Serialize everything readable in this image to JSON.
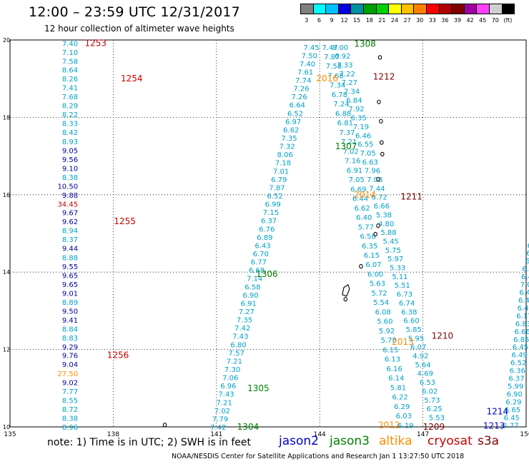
{
  "header": {
    "title": "12:00 – 23:59 UTC 12/31/2017",
    "subtitle": "12 hour collection of altimeter wave heights"
  },
  "colorbar": {
    "colors": [
      "#808080",
      "#00ffff",
      "#00c0ff",
      "#0000e0",
      "#0090a0",
      "#00a000",
      "#00d000",
      "#ffff00",
      "#ffc000",
      "#ff8000",
      "#ff0000",
      "#b00000",
      "#800000",
      "#a000a0",
      "#ff40ff",
      "#d0d0d0",
      "#000000"
    ],
    "labels": [
      "3",
      "6",
      "9",
      "12",
      "15",
      "18",
      "21",
      "24",
      "27",
      "30",
      "33",
      "36",
      "39",
      "42",
      "45",
      "70",
      "(ft)"
    ]
  },
  "map": {
    "lon_ticks": [
      "135",
      "138",
      "141",
      "144",
      "147",
      "150"
    ],
    "lat_ticks": [
      "10",
      "12",
      "14",
      "16",
      "18",
      "20"
    ],
    "colors": {
      "jason2": "#0000c8",
      "jason3": "#008000",
      "altika": "#ff8c00",
      "cryosat": "#c80000",
      "s3a": "#800000",
      "swh_light": "#00a0c8",
      "swh_mid": "#0080d0",
      "swh_dark": "#0000a0"
    },
    "tracks": [
      {
        "sat": "cryosat",
        "pass": "1253",
        "pass_lat": 19.92,
        "lon": 136.83,
        "values": [
          {
            "v": "7.40",
            "lat": 19.92,
            "lon": 136.83
          },
          {
            "v": "7.10",
            "lat": 19.69,
            "lon": 136.83
          },
          {
            "v": "7.58",
            "lat": 19.46,
            "lon": 136.83
          },
          {
            "v": "8.64",
            "lat": 19.23,
            "lon": 136.83
          },
          {
            "v": "8.26",
            "lat": 19.0,
            "lon": 136.83
          },
          {
            "v": "7.41",
            "lat": 18.77,
            "lon": 136.83
          },
          {
            "v": "7.68",
            "lat": 18.54,
            "lon": 136.83
          },
          {
            "v": "8.29",
            "lat": 18.31,
            "lon": 136.83
          },
          {
            "v": "8.22",
            "lat": 18.08,
            "lon": 136.83
          },
          {
            "v": "8.33",
            "lat": 17.85,
            "lon": 136.83
          },
          {
            "v": "8.42",
            "lat": 17.62,
            "lon": 136.83
          },
          {
            "v": "8.93",
            "lat": 17.38,
            "lon": 136.83
          },
          {
            "v": "9.05",
            "lat": 17.15,
            "lon": 136.83
          },
          {
            "v": "9.56",
            "lat": 16.92,
            "lon": 136.83
          },
          {
            "v": "9.10",
            "lat": 16.69,
            "lon": 136.83
          },
          {
            "v": "8.38",
            "lat": 16.46,
            "lon": 136.83
          },
          {
            "v": "10.50",
            "lat": 16.23,
            "lon": 136.83
          },
          {
            "v": "9.88",
            "lat": 16.0,
            "lon": 136.83
          },
          {
            "v": "34.45",
            "lat": 15.77,
            "lon": 136.83
          },
          {
            "v": "9.67",
            "lat": 15.54,
            "lon": 136.83
          },
          {
            "v": "9.62",
            "lat": 15.31,
            "lon": 136.83
          },
          {
            "v": "8.94",
            "lat": 15.08,
            "lon": 136.83
          },
          {
            "v": "8.37",
            "lat": 14.85,
            "lon": 136.83
          },
          {
            "v": "9.44",
            "lat": 14.62,
            "lon": 136.83
          },
          {
            "v": "8.88",
            "lat": 14.38,
            "lon": 136.83
          },
          {
            "v": "9.55",
            "lat": 14.15,
            "lon": 136.83
          },
          {
            "v": "9.65",
            "lat": 13.92,
            "lon": 136.83
          },
          {
            "v": "9.65",
            "lat": 13.69,
            "lon": 136.83
          },
          {
            "v": "9.01",
            "lat": 13.46,
            "lon": 136.83
          },
          {
            "v": "8.89",
            "lat": 13.23,
            "lon": 136.83
          },
          {
            "v": "9.50",
            "lat": 13.0,
            "lon": 136.83
          },
          {
            "v": "9.41",
            "lat": 12.77,
            "lon": 136.83
          },
          {
            "v": "8.84",
            "lat": 12.54,
            "lon": 136.83
          },
          {
            "v": "8.83",
            "lat": 12.31,
            "lon": 136.83
          },
          {
            "v": "9.29",
            "lat": 12.08,
            "lon": 136.83
          },
          {
            "v": "9.76",
            "lat": 11.85,
            "lon": 136.83
          },
          {
            "v": "9.04",
            "lat": 11.62,
            "lon": 136.83
          },
          {
            "v": "27.50",
            "lat": 11.38,
            "lon": 136.83
          },
          {
            "v": "9.02",
            "lat": 11.15,
            "lon": 136.83
          },
          {
            "v": "7.77",
            "lat": 10.92,
            "lon": 136.83
          },
          {
            "v": "8.55",
            "lat": 10.69,
            "lon": 136.83
          },
          {
            "v": "8.72",
            "lat": 10.46,
            "lon": 136.83
          },
          {
            "v": "8.38",
            "lat": 10.23,
            "lon": 136.83
          },
          {
            "v": "8.96",
            "lat": 10.0,
            "lon": 136.83
          }
        ]
      },
      {
        "sat": "cryosat",
        "pass": "1254",
        "lat": 19.0,
        "lon": 138.2
      },
      {
        "sat": "cryosat",
        "pass": "1255",
        "lat": 15.31,
        "lon": 138.0
      },
      {
        "sat": "cryosat",
        "pass": "1256",
        "lat": 11.85,
        "lon": 137.8
      }
    ],
    "swh_track_1304_1306": [
      "7.45",
      "7.50",
      "7.40",
      "7.61",
      "7.74",
      "7.26",
      "7.26",
      "6.64",
      "6.52",
      "6.97",
      "6.62",
      "7.35",
      "7.32",
      "8.06",
      "7.18",
      "7.01",
      "6.79",
      "7.87",
      "6.52",
      "6.99",
      "7.15",
      "6.37",
      "6.76",
      "6.89",
      "6.43",
      "6.70",
      "6.77",
      "6.68",
      "7.14",
      "6.58",
      "6.90",
      "6.91",
      "7.27",
      "7.35",
      "7.42",
      "7.43",
      "6.80",
      "7.57",
      "7.21",
      "7.30",
      "7.06",
      "6.96",
      "7.43",
      "7.21",
      "7.02",
      "7.79",
      "7.42"
    ],
    "swh_track_1307_1308": [
      "7.47",
      "7.87",
      "7.58",
      "7.68",
      "7.34",
      "6.78",
      "7.24",
      "6.88",
      "6.81",
      "7.37",
      "7.21",
      "7.02",
      "7.16",
      "6.91",
      "7.05",
      "6.69",
      "6.44",
      "6.62",
      "6.40",
      "5.77",
      "6.58",
      "6.35",
      "6.15",
      "6.07",
      "6.00",
      "5.63",
      "5.72",
      "5.54",
      "6.08",
      "5.60",
      "5.92",
      "5.78",
      "6.15",
      "6.13",
      "6.16",
      "6.14",
      "5.81",
      "6.22",
      "6.29",
      "6.03",
      "6.19"
    ],
    "swh_track_1208_1212": [
      "8.00",
      "6.92",
      "7.33",
      "7.22",
      "7.27",
      "7.34",
      "6.84",
      "7.92",
      "6.35",
      "7.19",
      "6.46",
      "6.55",
      "7.05",
      "6.63",
      "7.96",
      "7.08",
      "7.44",
      "6.72",
      "6.66",
      "5.38",
      "4.80",
      "5.88",
      "5.45",
      "5.75",
      "5.97",
      "5.33",
      "5.11",
      "5.51",
      "6.73",
      "6.74",
      "6.38",
      "6.60",
      "5.85",
      "5.95",
      "6.07",
      "4.92",
      "5.64",
      "4.69",
      "6.53",
      "6.02",
      "5.73",
      "6.25",
      "5.53"
    ],
    "swh_track_1213_1214": [
      "6.77",
      "6.45",
      "6.65",
      "6.29",
      "6.90",
      "5.99",
      "6.37",
      "6.36",
      "6.52",
      "6.49",
      "6.45",
      "6.85",
      "6.66",
      "6.83",
      "6.17",
      "6.45",
      "6.47",
      "6.46",
      "7.06",
      "6.45",
      "6.48",
      "6.7",
      "6.1",
      "6.0"
    ],
    "pass_labels": [
      {
        "id": "1304",
        "sat": "jason3"
      },
      {
        "id": "1305",
        "sat": "jason3"
      },
      {
        "id": "1306",
        "sat": "jason3"
      },
      {
        "id": "1307",
        "sat": "jason3"
      },
      {
        "id": "1308",
        "sat": "jason3"
      },
      {
        "id": "2016",
        "sat": "altika"
      },
      {
        "id": "2014",
        "sat": "altika"
      },
      {
        "id": "2013",
        "sat": "altika"
      },
      {
        "id": "2012",
        "sat": "altika"
      },
      {
        "id": "1212",
        "sat": "s3a"
      },
      {
        "id": "1211",
        "sat": "s3a"
      },
      {
        "id": "1210",
        "sat": "s3a"
      },
      {
        "id": "1209",
        "sat": "s3a"
      },
      {
        "id": "1214",
        "sat": "jason2"
      },
      {
        "id": "1213",
        "sat": "jason2"
      }
    ]
  },
  "footer": {
    "note": "note:  1) Time is in UTC;  2) SWH is in feet",
    "legend": [
      {
        "label": "jason2",
        "color": "#0000c8"
      },
      {
        "label": "jason3",
        "color": "#008000"
      },
      {
        "label": "altika",
        "color": "#ff8c00"
      },
      {
        "label": "cryosat",
        "color": "#c80000"
      },
      {
        "label": "s3a",
        "color": "#800000"
      }
    ],
    "credit": "NOAA/NESDIS Center for Satellite Applications and Research    Jan  1 13:27:50 UTC 2018"
  }
}
